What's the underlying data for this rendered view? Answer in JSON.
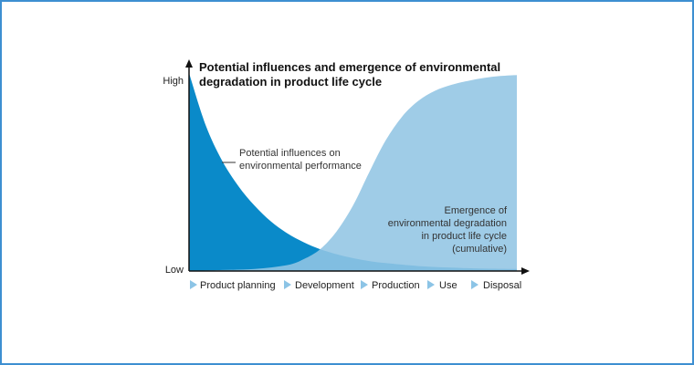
{
  "chart_data": {
    "type": "area",
    "title": "Potential influences and emergence of environmental degradation in product life cycle",
    "title_lines": [
      "Potential influences and emergence of environmental",
      "degradation in product life cycle"
    ],
    "y_tick_labels": {
      "high": "High",
      "low": "Low"
    },
    "x_stages": [
      "Product planning",
      "Development",
      "Production",
      "Use",
      "Disposal"
    ],
    "x_range": [
      0,
      1
    ],
    "y_range": [
      0,
      1
    ],
    "grid": false,
    "series": [
      {
        "name": "Potential influences on environmental performance",
        "label_lines": [
          "Potential influences on",
          "environmental performance"
        ],
        "color": "#0a8ac9",
        "x": [
          0.0,
          0.05,
          0.1,
          0.15,
          0.2,
          0.25,
          0.3,
          0.35,
          0.4,
          0.45,
          0.5,
          0.55,
          0.6,
          0.7,
          0.8,
          0.9,
          1.0
        ],
        "values": [
          1.0,
          0.74,
          0.56,
          0.43,
          0.33,
          0.25,
          0.19,
          0.145,
          0.11,
          0.085,
          0.065,
          0.05,
          0.04,
          0.025,
          0.017,
          0.012,
          0.01
        ]
      },
      {
        "name": "Emergence of environmental degradation in product life cycle (cumulative)",
        "label_lines": [
          "Emergence of",
          "environmental degradation",
          "in product life cycle",
          "(cumulative)"
        ],
        "color": "#92c5e4",
        "x": [
          0.0,
          0.1,
          0.2,
          0.3,
          0.35,
          0.4,
          0.45,
          0.5,
          0.55,
          0.6,
          0.65,
          0.7,
          0.75,
          0.8,
          0.85,
          0.9,
          0.95,
          1.0
        ],
        "values": [
          0.0,
          0.005,
          0.01,
          0.03,
          0.06,
          0.11,
          0.2,
          0.33,
          0.5,
          0.66,
          0.78,
          0.86,
          0.91,
          0.94,
          0.96,
          0.975,
          0.985,
          0.99
        ]
      }
    ]
  }
}
